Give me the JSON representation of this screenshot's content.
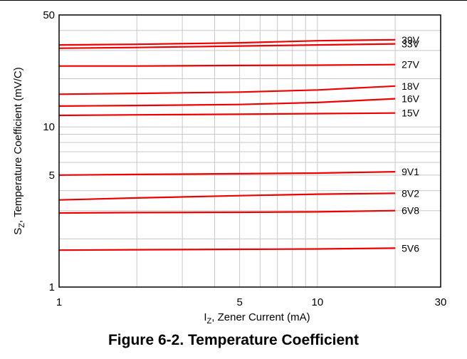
{
  "chart_data": {
    "type": "line",
    "title": "",
    "caption": "Figure 6-2. Temperature Coefficient",
    "xlabel": {
      "main": "I",
      "sub": "Z",
      "rest": ", Zener Current (mA)"
    },
    "ylabel": {
      "main": "S",
      "sub": "Z",
      "rest": ", Temperature Coefficient (mV/C)"
    },
    "xscale": "log",
    "yscale": "log",
    "xlim": [
      1,
      30
    ],
    "ylim": [
      1,
      50
    ],
    "xticks": [
      {
        "value": 1,
        "label": "1"
      },
      {
        "value": 5,
        "label": "5"
      },
      {
        "value": 10,
        "label": "10"
      },
      {
        "value": 30,
        "label": "30"
      }
    ],
    "yticks": [
      {
        "value": 1,
        "label": "1"
      },
      {
        "value": 5,
        "label": "5"
      },
      {
        "value": 10,
        "label": "10"
      },
      {
        "value": 50,
        "label": "50"
      }
    ],
    "grid": true,
    "line_color": "#ee0000",
    "x": [
      1,
      2,
      5,
      10,
      20
    ],
    "series": [
      {
        "name": "39V",
        "values": [
          32.5,
          32.8,
          33.5,
          34.5,
          35
        ]
      },
      {
        "name": "33V",
        "values": [
          31,
          31.3,
          32,
          32.5,
          33
        ]
      },
      {
        "name": "27V",
        "values": [
          24,
          24,
          24.2,
          24.3,
          24.5
        ]
      },
      {
        "name": "18V",
        "values": [
          16,
          16.2,
          16.5,
          17,
          18
        ]
      },
      {
        "name": "16V",
        "values": [
          13.5,
          13.6,
          13.8,
          14.2,
          15
        ]
      },
      {
        "name": "15V",
        "values": [
          11.8,
          11.9,
          12.0,
          12.1,
          12.2
        ]
      },
      {
        "name": "9V1",
        "values": [
          5.0,
          5.05,
          5.1,
          5.15,
          5.25
        ]
      },
      {
        "name": "8V2",
        "values": [
          3.5,
          3.6,
          3.72,
          3.8,
          3.85
        ]
      },
      {
        "name": "6V8",
        "values": [
          2.9,
          2.92,
          2.93,
          2.95,
          3.0
        ]
      },
      {
        "name": "5V6",
        "values": [
          1.7,
          1.71,
          1.72,
          1.73,
          1.75
        ]
      }
    ]
  }
}
